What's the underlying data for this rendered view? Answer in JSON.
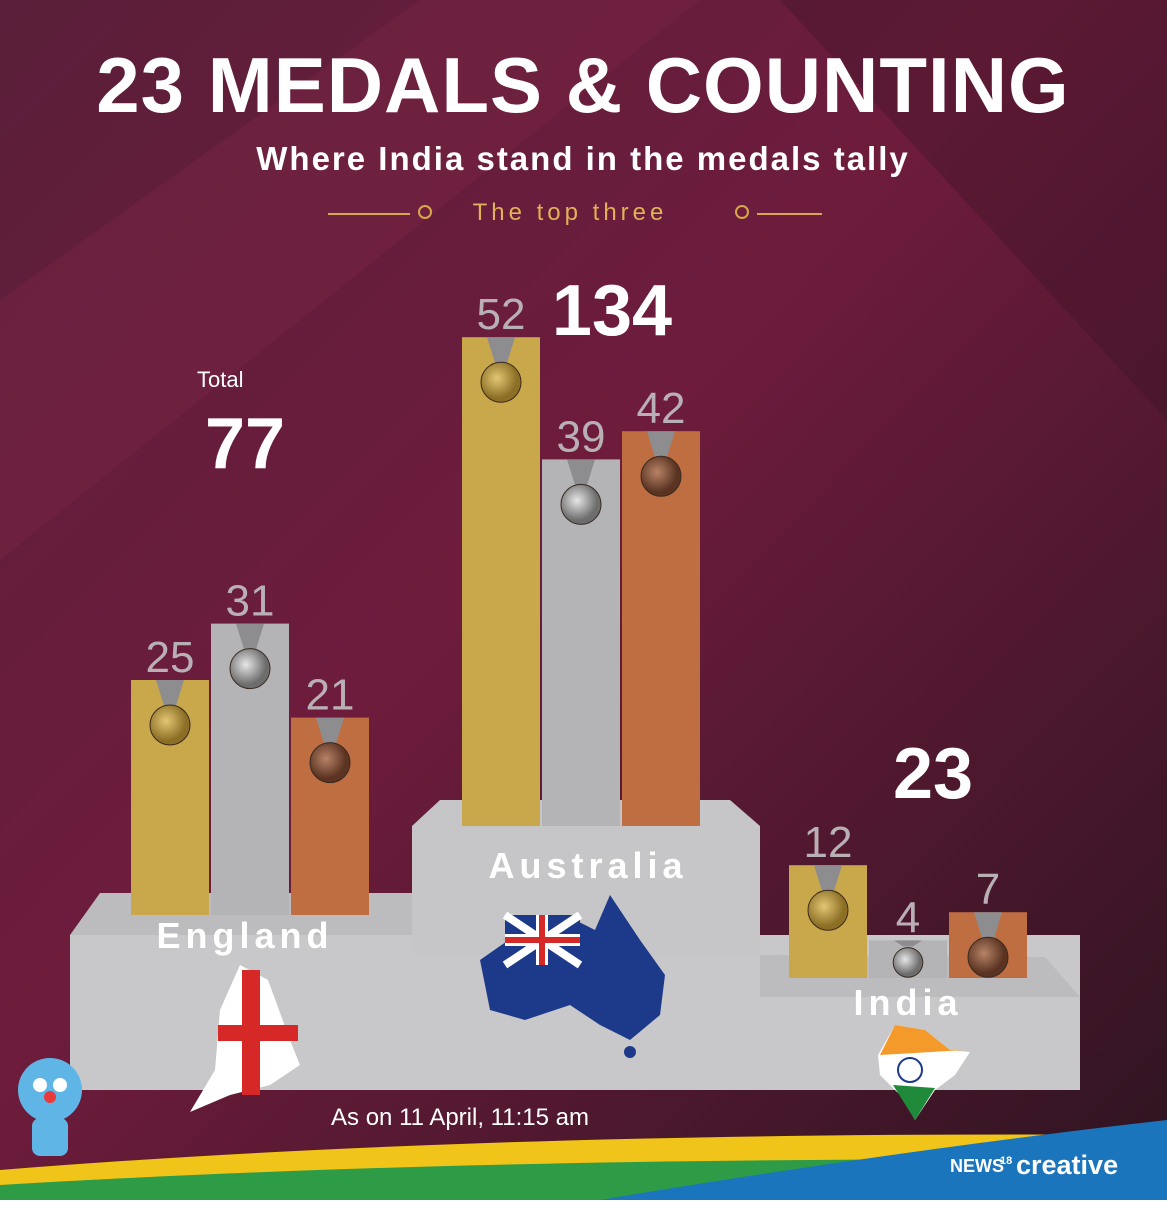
{
  "chart_data": {
    "type": "bar",
    "title": "23 MEDALS & COUNTING",
    "subtitle": "Where India stand in the medals tally",
    "section_label": "The top three",
    "total_label": "Total",
    "categories": [
      "England",
      "Australia",
      "India"
    ],
    "series": [
      {
        "color": "#c9a84c",
        "values": [
          25,
          52,
          12
        ]
      },
      {
        "color": "#b4b4b6",
        "values": [
          31,
          39,
          4
        ]
      },
      {
        "color": "#bf6e42",
        "values": [
          21,
          42,
          7
        ]
      }
    ],
    "totals": [
      77,
      134,
      23
    ],
    "footnote": "As on 11 April, 11:15 am",
    "brand": {
      "name": "NEWS",
      "number": "18",
      "tag": "creative"
    }
  }
}
